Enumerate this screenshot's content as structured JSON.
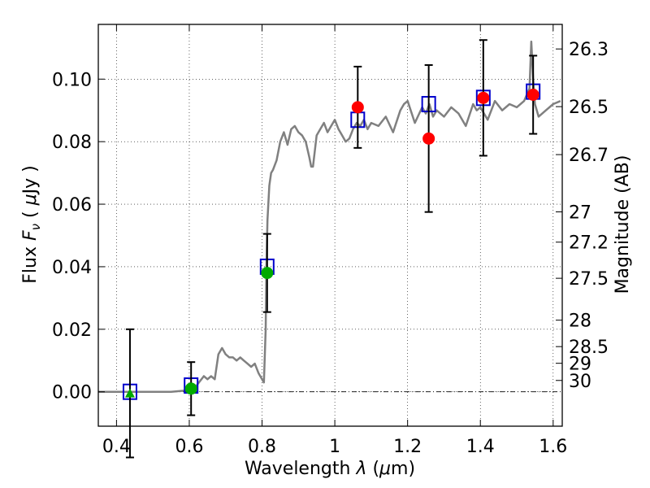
{
  "chart_data": {
    "type": "scatter",
    "title": "",
    "xlabel_parts": {
      "pre": "Wavelength  ",
      "sym": "λ",
      "post": " (",
      "mu": "μ",
      "unit": "m)"
    },
    "ylabel_parts": {
      "pre": "Flux  ",
      "F": "F",
      "nu": "ν",
      "post": "  (  ",
      "mu": "μ",
      "unit": "Jy  )"
    },
    "y2label": "Magnitude (AB)",
    "xlim": [
      0.35,
      1.625
    ],
    "ylim": [
      -0.011,
      0.1175
    ],
    "xticks": [
      0.4,
      0.6,
      0.8,
      1.0,
      1.2,
      1.4,
      1.6
    ],
    "xtick_labels": [
      "0.4",
      "0.6",
      "0.8",
      "1",
      "1.2",
      "1.4",
      "1.6"
    ],
    "yticks": [
      0.0,
      0.02,
      0.04,
      0.06,
      0.08,
      0.1
    ],
    "ytick_labels": [
      "0.00",
      "0.02",
      "0.04",
      "0.06",
      "0.08",
      "0.10"
    ],
    "mag_ticks": [
      {
        "label": "26.3",
        "mag": 26.3
      },
      {
        "label": "26.5",
        "mag": 26.5
      },
      {
        "label": "26.7",
        "mag": 26.7
      },
      {
        "label": "27",
        "mag": 27
      },
      {
        "label": "27.2",
        "mag": 27.2
      },
      {
        "label": "27.5",
        "mag": 27.5
      },
      {
        "label": "28",
        "mag": 28
      },
      {
        "label": "28.5",
        "mag": 28.5
      },
      {
        "label": "29",
        "mag": 29
      },
      {
        "label": "30",
        "mag": 30
      }
    ],
    "grid": true,
    "zero_line": true,
    "colors": {
      "model": "#808080",
      "model_phot": "#0000cc",
      "green": "#00aa00",
      "red": "#ff0000",
      "errorbar": "#000000",
      "grid": "#000000"
    },
    "model_spectrum": {
      "x": [
        0.35,
        0.4,
        0.45,
        0.5,
        0.55,
        0.6,
        0.62,
        0.64,
        0.65,
        0.66,
        0.67,
        0.68,
        0.69,
        0.7,
        0.71,
        0.72,
        0.73,
        0.74,
        0.75,
        0.76,
        0.77,
        0.78,
        0.79,
        0.8,
        0.805,
        0.81,
        0.812,
        0.815,
        0.82,
        0.825,
        0.83,
        0.84,
        0.85,
        0.86,
        0.87,
        0.88,
        0.89,
        0.9,
        0.91,
        0.92,
        0.93,
        0.935,
        0.94,
        0.95,
        0.96,
        0.97,
        0.98,
        0.99,
        1.0,
        1.01,
        1.02,
        1.03,
        1.04,
        1.05,
        1.06,
        1.07,
        1.08,
        1.09,
        1.1,
        1.12,
        1.14,
        1.16,
        1.18,
        1.19,
        1.2,
        1.22,
        1.24,
        1.25,
        1.26,
        1.27,
        1.28,
        1.3,
        1.32,
        1.34,
        1.36,
        1.38,
        1.39,
        1.4,
        1.42,
        1.44,
        1.46,
        1.48,
        1.5,
        1.52,
        1.535,
        1.54,
        1.545,
        1.55,
        1.56,
        1.58,
        1.6,
        1.62
      ],
      "y": [
        0.0,
        0.0,
        0.0,
        0.0,
        0.0,
        0.0005,
        0.002,
        0.005,
        0.004,
        0.005,
        0.004,
        0.012,
        0.014,
        0.012,
        0.011,
        0.011,
        0.01,
        0.011,
        0.01,
        0.009,
        0.008,
        0.009,
        0.006,
        0.004,
        0.003,
        0.02,
        0.04,
        0.055,
        0.066,
        0.07,
        0.071,
        0.074,
        0.08,
        0.083,
        0.079,
        0.084,
        0.085,
        0.083,
        0.082,
        0.08,
        0.075,
        0.072,
        0.072,
        0.082,
        0.084,
        0.086,
        0.083,
        0.085,
        0.087,
        0.084,
        0.082,
        0.08,
        0.081,
        0.084,
        0.086,
        0.085,
        0.087,
        0.084,
        0.086,
        0.085,
        0.088,
        0.083,
        0.09,
        0.092,
        0.093,
        0.086,
        0.091,
        0.089,
        0.092,
        0.088,
        0.09,
        0.088,
        0.091,
        0.089,
        0.085,
        0.092,
        0.09,
        0.091,
        0.087,
        0.093,
        0.09,
        0.092,
        0.091,
        0.093,
        0.097,
        0.112,
        0.1,
        0.092,
        0.088,
        0.09,
        0.092,
        0.093
      ]
    },
    "series": [
      {
        "marker": "square",
        "x": [
          0.437,
          0.605,
          0.814,
          1.063,
          1.258,
          1.408,
          1.545
        ],
        "values": [
          0.0,
          0.002,
          0.04,
          0.087,
          0.092,
          0.094,
          0.096
        ]
      },
      {
        "marker": "triangle",
        "color": "green",
        "x": [
          0.437
        ],
        "values": [
          -0.0005
        ],
        "err": [
          0.0205
        ]
      },
      {
        "marker": "circle",
        "color": "green",
        "x": [
          0.605,
          0.814
        ],
        "values": [
          0.001,
          0.038
        ],
        "err": [
          0.0085,
          0.0125
        ]
      },
      {
        "marker": "circle",
        "color": "red",
        "x": [
          1.063,
          1.258,
          1.408,
          1.545
        ],
        "values": [
          0.091,
          0.081,
          0.094,
          0.095
        ],
        "err": [
          0.013,
          0.0235,
          0.0185,
          0.0125
        ]
      }
    ]
  }
}
